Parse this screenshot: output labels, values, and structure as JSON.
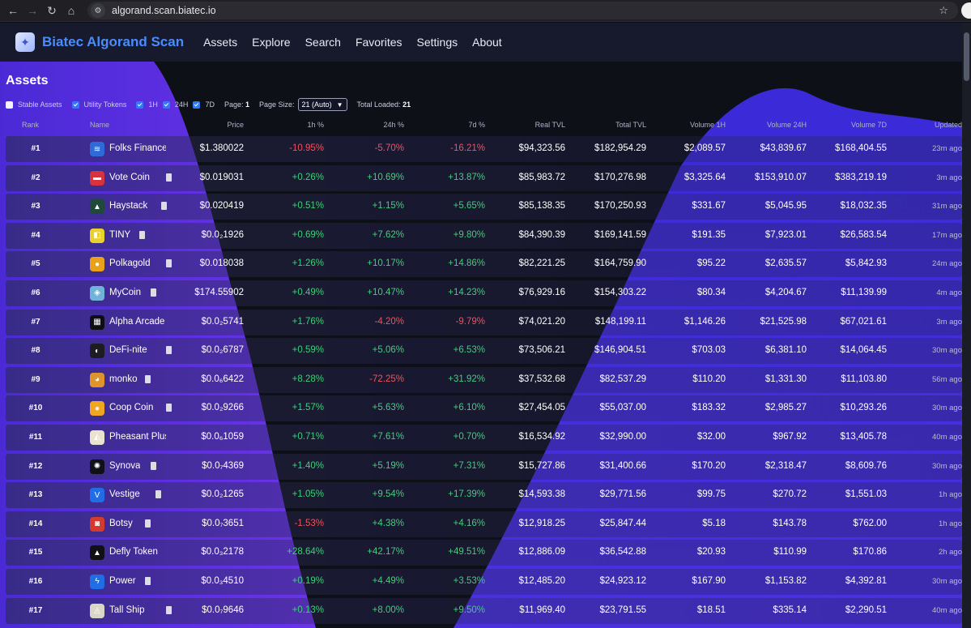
{
  "browser": {
    "url": "algorand.scan.biatec.io"
  },
  "header": {
    "brand": "Biatec Algorand Scan",
    "menu": [
      "Assets",
      "Explore",
      "Search",
      "Favorites",
      "Settings",
      "About"
    ]
  },
  "page": {
    "title": "Assets"
  },
  "filters": {
    "stable_assets": "Stable Assets",
    "utility_tokens": "Utility Tokens",
    "h1": "1H",
    "h24": "24H",
    "d7": "7D",
    "page_label": "Page:",
    "page_value": "1",
    "page_size_label": "Page Size:",
    "page_size_value": "21 (Auto)",
    "total_loaded_label": "Total Loaded:",
    "total_loaded_value": "21"
  },
  "columns": [
    "Rank",
    "Name",
    "Price",
    "1h %",
    "24h %",
    "7d %",
    "Real TVL",
    "Total TVL",
    "Volume 1H",
    "Volume 24H",
    "Volume 7D",
    "Updated"
  ],
  "rows": [
    {
      "rank": "#1",
      "name": "Folks Finance",
      "icon": "folks-icon",
      "icon_bg": "#2f6bd8",
      "copy": false,
      "price": "$1.380022",
      "h1": "-10.95%",
      "h24": "-5.70%",
      "d7": "-16.21%",
      "real": "$94,323.56",
      "total": "$182,954.29",
      "v1": "$2,089.57",
      "v24": "$43,839.67",
      "v7": "$168,404.55",
      "upd": "23m ago"
    },
    {
      "rank": "#2",
      "name": "Vote Coin",
      "icon": "vote-icon",
      "icon_bg": "#d8323c",
      "copy": true,
      "price": "$0.019031",
      "h1": "+0.26%",
      "h24": "+10.69%",
      "d7": "+13.87%",
      "real": "$85,983.72",
      "total": "$170,276.98",
      "v1": "$3,325.64",
      "v24": "$153,910.07",
      "v7": "$383,219.19",
      "upd": "3m ago"
    },
    {
      "rank": "#3",
      "name": "Haystack",
      "icon": "haystack-icon",
      "icon_bg": "#1f4a3a",
      "copy": true,
      "price": "$0.020419",
      "h1": "+0.51%",
      "h24": "+1.15%",
      "d7": "+5.65%",
      "real": "$85,138.35",
      "total": "$170,250.93",
      "v1": "$331.67",
      "v24": "$5,045.95",
      "v7": "$18,032.35",
      "upd": "31m ago"
    },
    {
      "rank": "#4",
      "name": "TINY",
      "icon": "tiny-icon",
      "icon_bg": "#e8d12a",
      "copy": true,
      "price": "$0.0₂1926",
      "h1": "+0.69%",
      "h24": "+7.62%",
      "d7": "+9.80%",
      "real": "$84,390.39",
      "total": "$169,141.59",
      "v1": "$191.35",
      "v24": "$7,923.01",
      "v7": "$26,583.54",
      "upd": "17m ago"
    },
    {
      "rank": "#5",
      "name": "Polkagold",
      "icon": "polkagold-icon",
      "icon_bg": "#e8a21a",
      "copy": true,
      "price": "$0.018038",
      "h1": "+1.26%",
      "h24": "+10.17%",
      "d7": "+14.86%",
      "real": "$82,221.25",
      "total": "$164,759.90",
      "v1": "$95.22",
      "v24": "$2,635.57",
      "v7": "$5,842.93",
      "upd": "24m ago"
    },
    {
      "rank": "#6",
      "name": "MyCoin",
      "icon": "mycoin-icon",
      "icon_bg": "#6fb4d8",
      "copy": true,
      "price": "$174.55902",
      "h1": "+0.49%",
      "h24": "+10.47%",
      "d7": "+14.23%",
      "real": "$76,929.16",
      "total": "$154,303.22",
      "v1": "$80.34",
      "v24": "$4,204.67",
      "v7": "$11,139.99",
      "upd": "4m ago"
    },
    {
      "rank": "#7",
      "name": "Alpha Arcade",
      "icon": "alpha-arcade-icon",
      "icon_bg": "#0e0e14",
      "copy": false,
      "price": "$0.0₂5741",
      "h1": "+1.76%",
      "h24": "-4.20%",
      "d7": "-9.79%",
      "real": "$74,021.20",
      "total": "$148,199.11",
      "v1": "$1,146.26",
      "v24": "$21,525.98",
      "v7": "$67,021.61",
      "upd": "3m ago"
    },
    {
      "rank": "#8",
      "name": "DeFi-nite",
      "icon": "defi-nite-icon",
      "icon_bg": "#1c1c22",
      "copy": true,
      "price": "$0.0₂6787",
      "h1": "+0.59%",
      "h24": "+5.06%",
      "d7": "+6.53%",
      "real": "$73,506.21",
      "total": "$146,904.51",
      "v1": "$703.03",
      "v24": "$6,381.10",
      "v7": "$14,064.45",
      "upd": "30m ago"
    },
    {
      "rank": "#9",
      "name": "monko",
      "icon": "monko-icon",
      "icon_bg": "#e0952a",
      "copy": true,
      "price": "$0.0₆6422",
      "h1": "+8.28%",
      "h24": "-72.25%",
      "d7": "+31.92%",
      "real": "$37,532.68",
      "total": "$82,537.29",
      "v1": "$110.20",
      "v24": "$1,331.30",
      "v7": "$11,103.80",
      "upd": "56m ago"
    },
    {
      "rank": "#10",
      "name": "Coop Coin",
      "icon": "coop-coin-icon",
      "icon_bg": "#f0a623",
      "copy": true,
      "price": "$0.0₂9266",
      "h1": "+1.57%",
      "h24": "+5.63%",
      "d7": "+6.10%",
      "real": "$27,454.05",
      "total": "$55,037.00",
      "v1": "$183.32",
      "v24": "$2,985.27",
      "v7": "$10,293.26",
      "upd": "30m ago"
    },
    {
      "rank": "#11",
      "name": "Pheasant Plus",
      "icon": "pheasant-icon",
      "icon_bg": "#e9e2cf",
      "copy": false,
      "price": "$0.0₆1059",
      "h1": "+0.71%",
      "h24": "+7.61%",
      "d7": "+0.70%",
      "real": "$16,534.92",
      "total": "$32,990.00",
      "v1": "$32.00",
      "v24": "$967.92",
      "v7": "$13,405.78",
      "upd": "40m ago"
    },
    {
      "rank": "#12",
      "name": "Synova",
      "icon": "synova-icon",
      "icon_bg": "#101018",
      "copy": true,
      "price": "$0.0₇4369",
      "h1": "+1.40%",
      "h24": "+5.19%",
      "d7": "+7.31%",
      "real": "$15,727.86",
      "total": "$31,400.66",
      "v1": "$170.20",
      "v24": "$2,318.47",
      "v7": "$8,609.76",
      "upd": "30m ago"
    },
    {
      "rank": "#13",
      "name": "Vestige",
      "icon": "vestige-icon",
      "icon_bg": "#1f6ee8",
      "copy": true,
      "price": "$0.0₂1265",
      "h1": "+1.05%",
      "h24": "+9.54%",
      "d7": "+17.39%",
      "real": "$14,593.38",
      "total": "$29,771.56",
      "v1": "$99.75",
      "v24": "$270.72",
      "v7": "$1,551.03",
      "upd": "1h ago"
    },
    {
      "rank": "#14",
      "name": "Botsy",
      "icon": "botsy-icon",
      "icon_bg": "#d63a2f",
      "copy": true,
      "price": "$0.0₇3651",
      "h1": "-1.53%",
      "h24": "+4.38%",
      "d7": "+4.16%",
      "real": "$12,918.25",
      "total": "$25,847.44",
      "v1": "$5.18",
      "v24": "$143.78",
      "v7": "$762.00",
      "upd": "1h ago"
    },
    {
      "rank": "#15",
      "name": "Defly Token",
      "icon": "defly-icon",
      "icon_bg": "#111115",
      "copy": false,
      "price": "$0.0₃2178",
      "h1": "+28.64%",
      "h24": "+42.17%",
      "d7": "+49.51%",
      "real": "$12,886.09",
      "total": "$36,542.88",
      "v1": "$20.93",
      "v24": "$110.99",
      "v7": "$170.86",
      "upd": "2h ago"
    },
    {
      "rank": "#16",
      "name": "Power",
      "icon": "power-icon",
      "icon_bg": "#1f6ee8",
      "copy": true,
      "price": "$0.0₃4510",
      "h1": "+0.19%",
      "h24": "+4.49%",
      "d7": "+3.53%",
      "real": "$12,485.20",
      "total": "$24,923.12",
      "v1": "$167.90",
      "v24": "$1,153.82",
      "v7": "$4,392.81",
      "upd": "30m ago"
    },
    {
      "rank": "#17",
      "name": "Tall Ship",
      "icon": "tall-ship-icon",
      "icon_bg": "#d9d6c8",
      "copy": true,
      "price": "$0.0₇9646",
      "h1": "+0.13%",
      "h24": "+8.00%",
      "d7": "+9.50%",
      "real": "$11,969.40",
      "total": "$23,791.55",
      "v1": "$18.51",
      "v24": "$335.14",
      "v7": "$2,290.51",
      "upd": "40m ago"
    }
  ]
}
